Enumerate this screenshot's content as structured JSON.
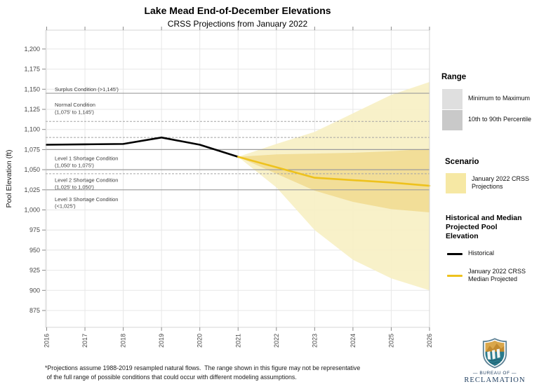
{
  "page": {
    "title": "Lake Mead End-of-December Elevations",
    "subtitle": "CRSS Projections from January 2022"
  },
  "chart_data": {
    "type": "line",
    "title": "Lake Mead End-of-December Elevations",
    "subtitle": "CRSS Projections from January 2022",
    "ylabel": "Pool Elevation (ft)",
    "xlabel": "",
    "ylim": [
      854,
      1223
    ],
    "grid": true,
    "yticks": [
      875,
      900,
      925,
      950,
      975,
      1000,
      1025,
      1050,
      1075,
      1100,
      1125,
      1150,
      1175,
      1200
    ],
    "years": [
      2016,
      2017,
      2018,
      2019,
      2020,
      2021,
      2022,
      2023,
      2024,
      2025,
      2026
    ],
    "threshold_lines": {
      "solid": [
        1145,
        1075,
        1050,
        1025
      ],
      "dashed": [
        1110,
        1090,
        1045
      ]
    },
    "condition_labels": [
      {
        "text": "Surplus Condition (>1,145')",
        "elevation": 1150
      },
      {
        "text": "Normal Condition",
        "elevation": 1130.5
      },
      {
        "text": "(1,075' to 1,145')",
        "elevation": 1121.5
      },
      {
        "text": "Level 1 Shortage Condition",
        "elevation": 1064
      },
      {
        "text": "(1,050' to 1,075')",
        "elevation": 1055.5
      },
      {
        "text": "Level 2 Shortage Condition",
        "elevation": 1037
      },
      {
        "text": "(1,025' to 1,050')",
        "elevation": 1028.5
      },
      {
        "text": "Level 3 Shortage Condition",
        "elevation": 1013
      },
      {
        "text": "(<1,025')",
        "elevation": 1005
      }
    ],
    "historical": {
      "name": "Historical",
      "years": [
        2016,
        2017,
        2018,
        2019,
        2020,
        2021
      ],
      "values": [
        1081,
        1081.5,
        1082,
        1090,
        1081,
        1066
      ]
    },
    "projection": {
      "name": "January 2022 CRSS Projections",
      "years": [
        2021,
        2022,
        2023,
        2024,
        2025,
        2026
      ],
      "median": [
        1066,
        1053,
        1040,
        1037,
        1034,
        1030
      ],
      "p90": [
        1066,
        1069,
        1070,
        1071,
        1073,
        1076
      ],
      "p10": [
        1066,
        1045,
        1024,
        1010,
        1001,
        997
      ],
      "max": [
        1066,
        1082,
        1097,
        1120,
        1143,
        1159
      ],
      "min": [
        1066,
        1028,
        975,
        938,
        915,
        900
      ]
    }
  },
  "colors": {
    "band_minmax": "#F7EFC3",
    "band_1090": "#F1DC92",
    "median_line": "#EEC21D",
    "historical_line": "#000000",
    "legend_minmax": "#DFDFDF",
    "legend_1090": "#C9C9C9",
    "legend_scenario": "#F6E8A4",
    "grid": "#E7E7E7",
    "threshold": "#9C9C9C",
    "threshold_dashed": "#A5A5A5",
    "logo_navy": "#1D3C5E",
    "logo_teal": "#2A7A8C",
    "logo_tan": "#D9A74B"
  },
  "legend": {
    "range": {
      "title": "Range",
      "items": [
        {
          "label": "Minimum to Maximum"
        },
        {
          "label": "10th to 90th Percentile"
        }
      ]
    },
    "scenario": {
      "title": "Scenario",
      "item": "January 2022 CRSS Projections"
    },
    "lines": {
      "title": "Historical and Median Projected Pool Elevation",
      "historical": "Historical",
      "median": "January 2022 CRSS Median Projected"
    }
  },
  "footnote": {
    "line1": "*Projections assume 1988-2019 resampled natural flows.  The range shown in this figure may not be representative",
    "line2": " of the full range of possible conditions that could occur with different modeling assumptions."
  },
  "logo": {
    "bureau_line": "BUREAU OF",
    "name": "RECLAMATION"
  }
}
